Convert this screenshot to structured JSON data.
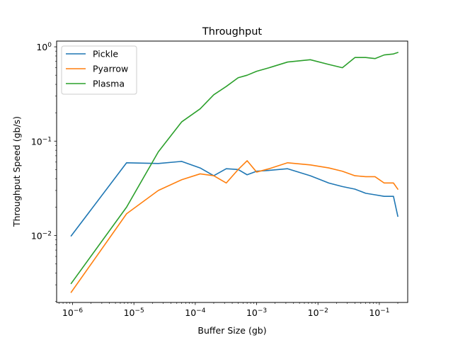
{
  "chart_data": {
    "type": "line",
    "title": "Throughput",
    "xlabel": "Buffer Size (gb)",
    "ylabel": "Throughput Speed (gb/s)",
    "xscale": "log",
    "yscale": "log",
    "xlim": [
      5.5e-07,
      0.29
    ],
    "ylim": [
      0.00195,
      1.15
    ],
    "xticks": [
      {
        "value": 1e-06,
        "label": "10",
        "exp": "−6"
      },
      {
        "value": 1e-05,
        "label": "10",
        "exp": "−5"
      },
      {
        "value": 0.0001,
        "label": "10",
        "exp": "−4"
      },
      {
        "value": 0.001,
        "label": "10",
        "exp": "−3"
      },
      {
        "value": 0.01,
        "label": "10",
        "exp": "−2"
      },
      {
        "value": 0.1,
        "label": "10",
        "exp": "−1"
      }
    ],
    "yticks": [
      {
        "value": 0.01,
        "label": "10",
        "exp": "−2"
      },
      {
        "value": 0.1,
        "label": "10",
        "exp": "−1"
      },
      {
        "value": 1,
        "label": "10",
        "exp": "0"
      }
    ],
    "grid": false,
    "legend_position": "top-left",
    "series": [
      {
        "name": "Pickle",
        "color": "#1f77b4",
        "x": [
          9.5e-07,
          7.6e-06,
          2.5e-05,
          6e-05,
          0.00012,
          0.0002,
          0.00032,
          0.0005,
          0.0007,
          0.001,
          0.0016,
          0.0032,
          0.0075,
          0.015,
          0.025,
          0.04,
          0.06,
          0.085,
          0.12,
          0.17,
          0.2
        ],
        "y": [
          0.0099,
          0.059,
          0.058,
          0.061,
          0.052,
          0.043,
          0.051,
          0.05,
          0.044,
          0.048,
          0.049,
          0.051,
          0.043,
          0.036,
          0.033,
          0.031,
          0.028,
          0.027,
          0.026,
          0.026,
          0.016
        ]
      },
      {
        "name": "Pyarrow",
        "color": "#ff7f0e",
        "x": [
          9.5e-07,
          7.6e-06,
          2.5e-05,
          6e-05,
          0.00012,
          0.0002,
          0.00032,
          0.0005,
          0.0007,
          0.001,
          0.0016,
          0.0032,
          0.0075,
          0.015,
          0.025,
          0.04,
          0.06,
          0.085,
          0.12,
          0.17,
          0.2
        ],
        "y": [
          0.0025,
          0.017,
          0.03,
          0.039,
          0.045,
          0.043,
          0.036,
          0.05,
          0.062,
          0.047,
          0.051,
          0.059,
          0.056,
          0.052,
          0.048,
          0.043,
          0.042,
          0.042,
          0.036,
          0.036,
          0.031
        ]
      },
      {
        "name": "Plasma",
        "color": "#2ca02c",
        "x": [
          9.5e-07,
          7.6e-06,
          2.5e-05,
          6e-05,
          0.00012,
          0.0002,
          0.00032,
          0.0005,
          0.0007,
          0.001,
          0.0016,
          0.0032,
          0.0075,
          0.015,
          0.025,
          0.04,
          0.06,
          0.085,
          0.12,
          0.17,
          0.2
        ],
        "y": [
          0.0031,
          0.02,
          0.077,
          0.16,
          0.22,
          0.31,
          0.38,
          0.47,
          0.5,
          0.55,
          0.6,
          0.69,
          0.73,
          0.65,
          0.6,
          0.77,
          0.77,
          0.75,
          0.82,
          0.84,
          0.87
        ]
      }
    ]
  }
}
